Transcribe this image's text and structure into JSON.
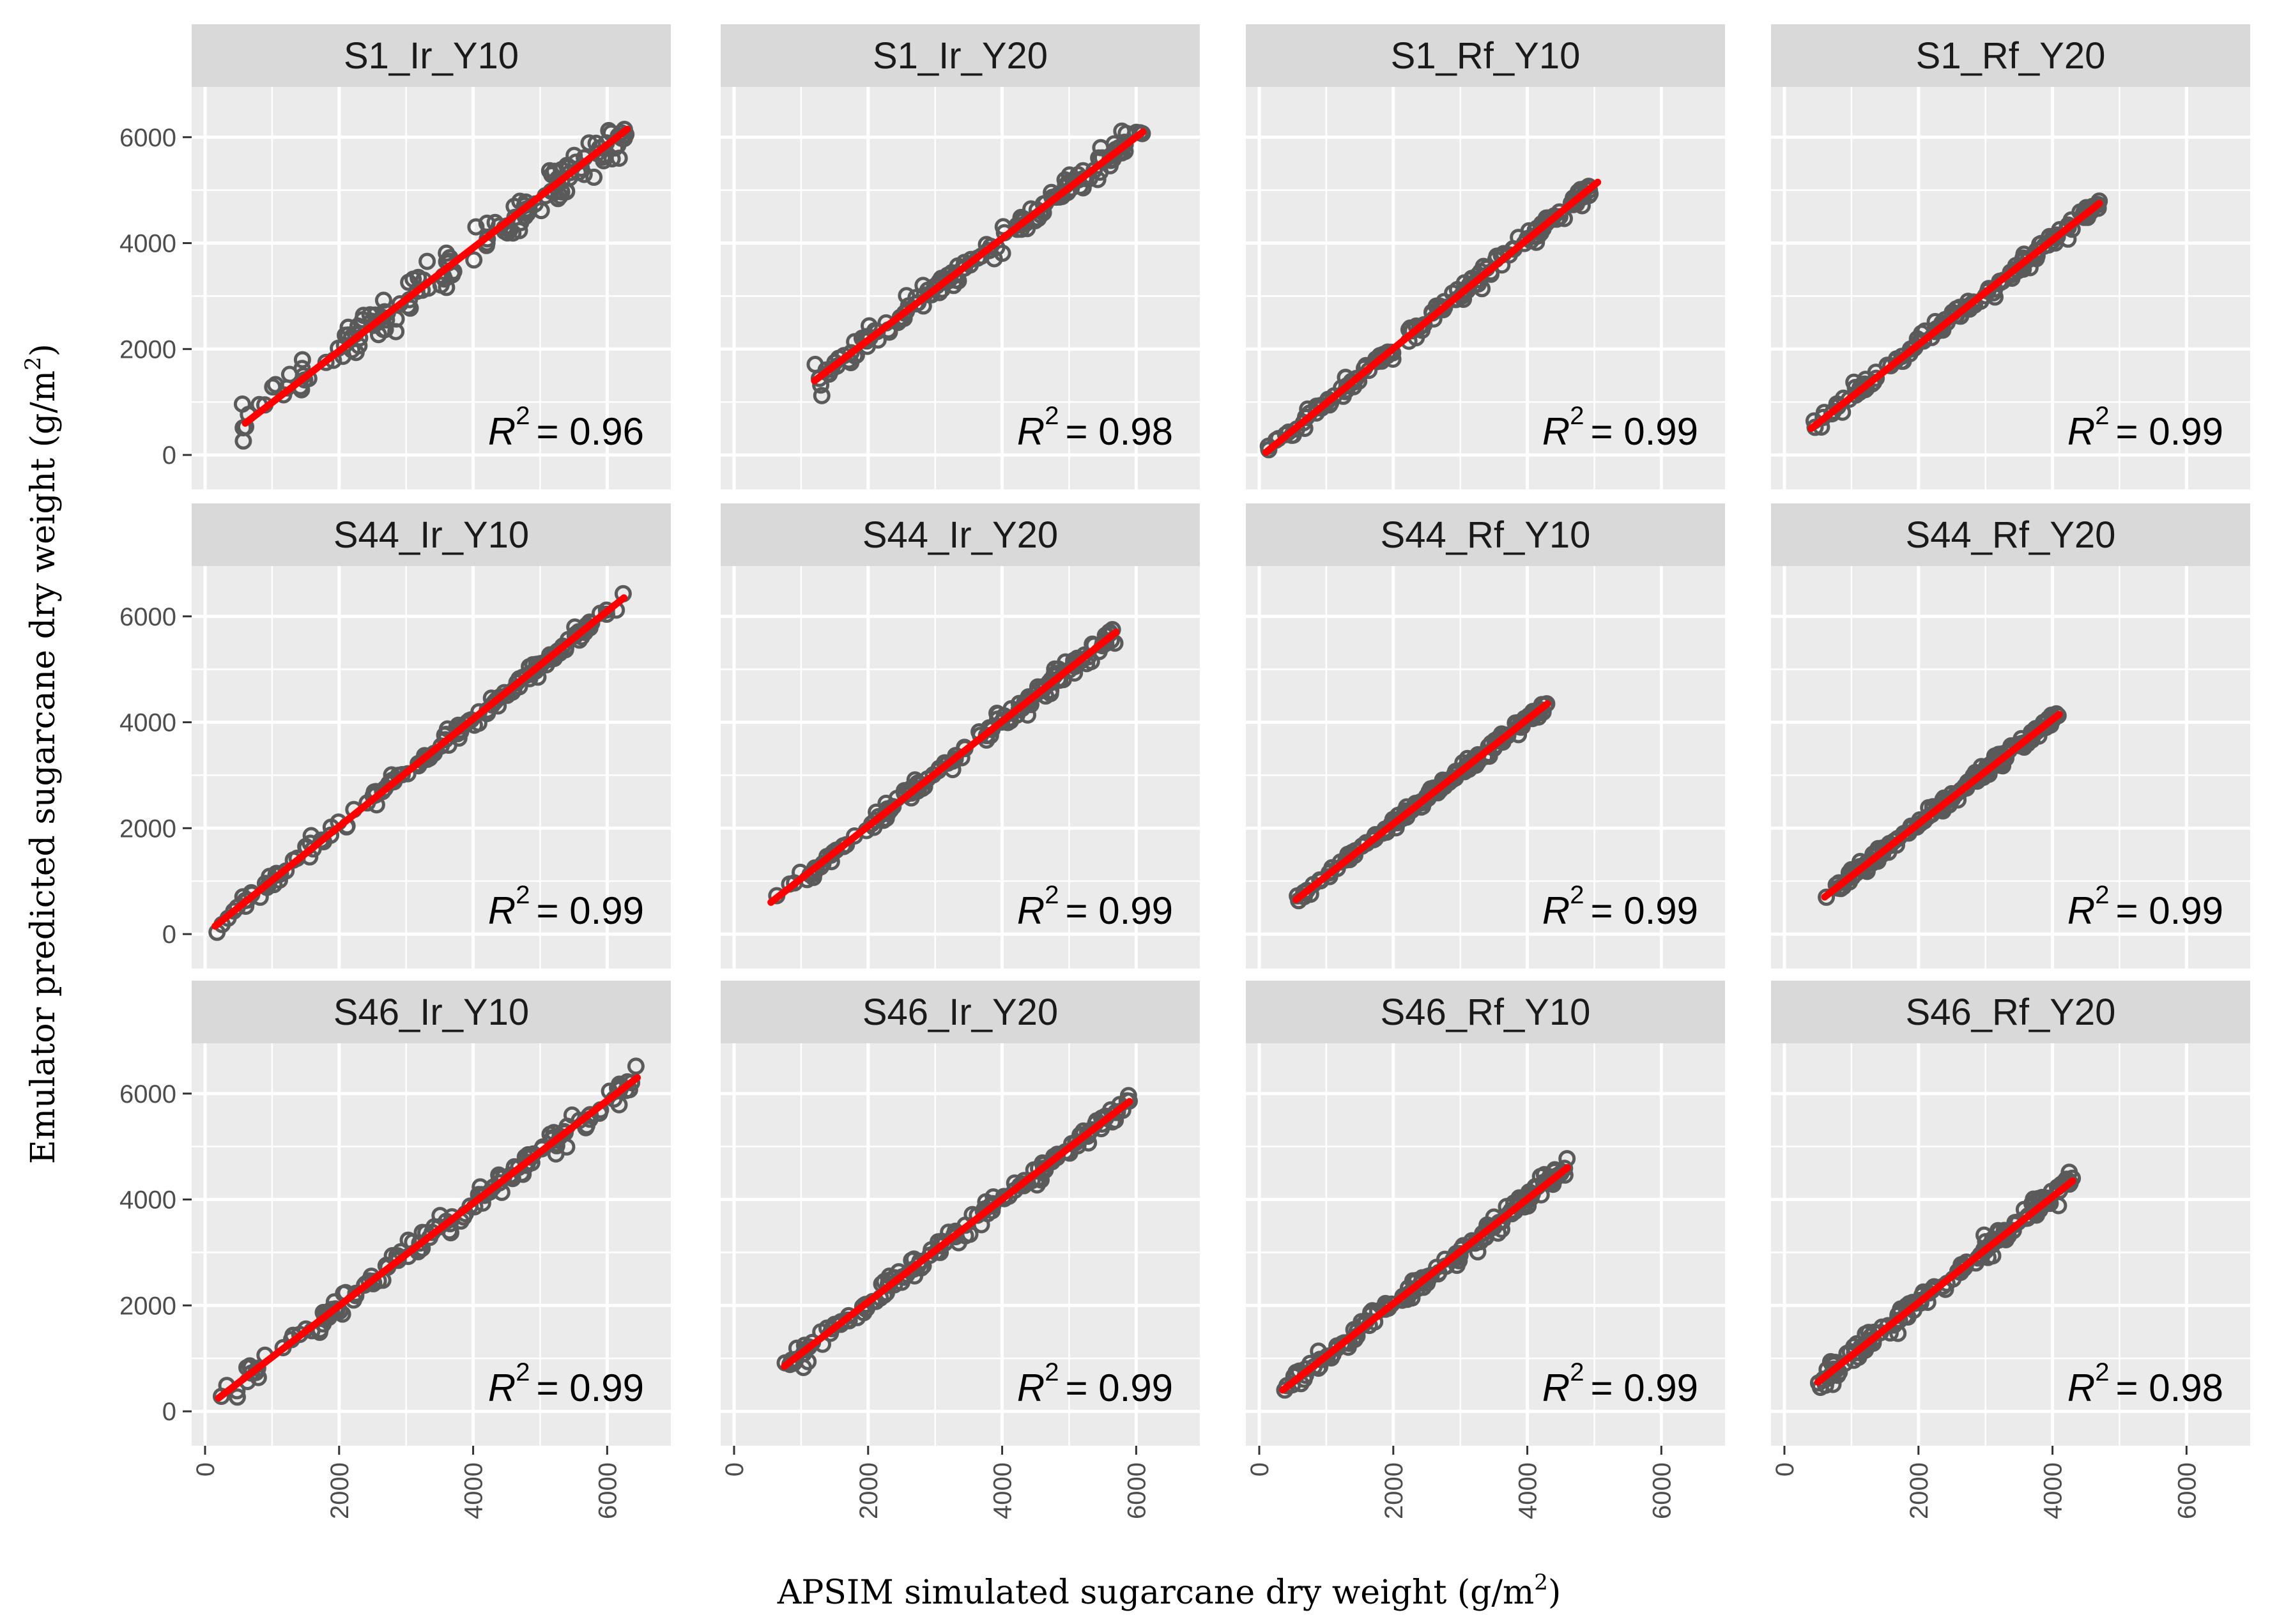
{
  "chart_data": {
    "type": "scatter",
    "xlabel": "APSIM simulated sugarcane dry weight (g/m²)",
    "ylabel": "Emulator predicted sugarcane dry weight (g/m²)",
    "axis_title_parts": {
      "x_prefix": "APSIM simulated sugarcane dry weight (g/m",
      "y_prefix": "Emulator predicted sugarcane dry weight (g/m",
      "superscript": "2",
      "suffix": ")"
    },
    "xlim": [
      -200,
      6950
    ],
    "ylim": [
      -650,
      6950
    ],
    "x_ticks": [
      0,
      2000,
      4000,
      6000
    ],
    "y_ticks": [
      0,
      2000,
      4000,
      6000
    ],
    "x_tick_labels": [
      "0",
      "2000",
      "4000",
      "6000"
    ],
    "y_tick_labels": [
      "0",
      "2000",
      "4000",
      "6000"
    ],
    "colors": {
      "points": "#5a5a5a",
      "fit_line": "#ff0000",
      "panel_bg": "#ebebeb",
      "strip_bg": "#d9d9d9",
      "grid": "#ffffff"
    },
    "r2_symbol": "R",
    "r2_superscript": "2",
    "panels": [
      {
        "label": "S1_Ir_Y10",
        "r2": "= 0.96",
        "x_range": [
          500,
          6300
        ],
        "fit_start": [
          600,
          600
        ],
        "fit_end": [
          6300,
          6150
        ],
        "scatter": 190
      },
      {
        "label": "S1_Ir_Y20",
        "r2": "= 0.98",
        "x_range": [
          1200,
          6100
        ],
        "fit_start": [
          1200,
          1400
        ],
        "fit_end": [
          6100,
          6100
        ],
        "scatter": 110
      },
      {
        "label": "S1_Rf_Y10",
        "r2": "= 0.99",
        "x_range": [
          100,
          5050
        ],
        "fit_start": [
          100,
          50
        ],
        "fit_end": [
          5050,
          5150
        ],
        "scatter": 80
      },
      {
        "label": "S1_Rf_Y20",
        "r2": "= 0.99",
        "x_range": [
          400,
          4700
        ],
        "fit_start": [
          400,
          500
        ],
        "fit_end": [
          4700,
          4750
        ],
        "scatter": 80
      },
      {
        "label": "S44_Ir_Y10",
        "r2": "= 0.99",
        "x_range": [
          150,
          6250
        ],
        "fit_start": [
          150,
          150
        ],
        "fit_end": [
          6250,
          6350
        ],
        "scatter": 80
      },
      {
        "label": "S44_Ir_Y20",
        "r2": "= 0.99",
        "x_range": [
          550,
          5700
        ],
        "fit_start": [
          550,
          600
        ],
        "fit_end": [
          5700,
          5700
        ],
        "scatter": 90
      },
      {
        "label": "S44_Rf_Y10",
        "r2": "= 0.99",
        "x_range": [
          550,
          4300
        ],
        "fit_start": [
          550,
          650
        ],
        "fit_end": [
          4300,
          4350
        ],
        "scatter": 60
      },
      {
        "label": "S44_Rf_Y20",
        "r2": "= 0.99",
        "x_range": [
          600,
          4100
        ],
        "fit_start": [
          600,
          700
        ],
        "fit_end": [
          4100,
          4150
        ],
        "scatter": 70
      },
      {
        "label": "S46_Ir_Y10",
        "r2": "= 0.99",
        "x_range": [
          200,
          6450
        ],
        "fit_start": [
          200,
          250
        ],
        "fit_end": [
          6450,
          6300
        ],
        "scatter": 110
      },
      {
        "label": "S46_Ir_Y20",
        "r2": "= 0.99",
        "x_range": [
          750,
          5900
        ],
        "fit_start": [
          750,
          850
        ],
        "fit_end": [
          5900,
          5850
        ],
        "scatter": 90
      },
      {
        "label": "S46_Rf_Y10",
        "r2": "= 0.99",
        "x_range": [
          350,
          4600
        ],
        "fit_start": [
          350,
          400
        ],
        "fit_end": [
          4600,
          4600
        ],
        "scatter": 90
      },
      {
        "label": "S46_Rf_Y20",
        "r2": "= 0.98",
        "x_range": [
          500,
          4300
        ],
        "fit_start": [
          500,
          550
        ],
        "fit_end": [
          4300,
          4350
        ],
        "scatter": 110
      }
    ]
  }
}
